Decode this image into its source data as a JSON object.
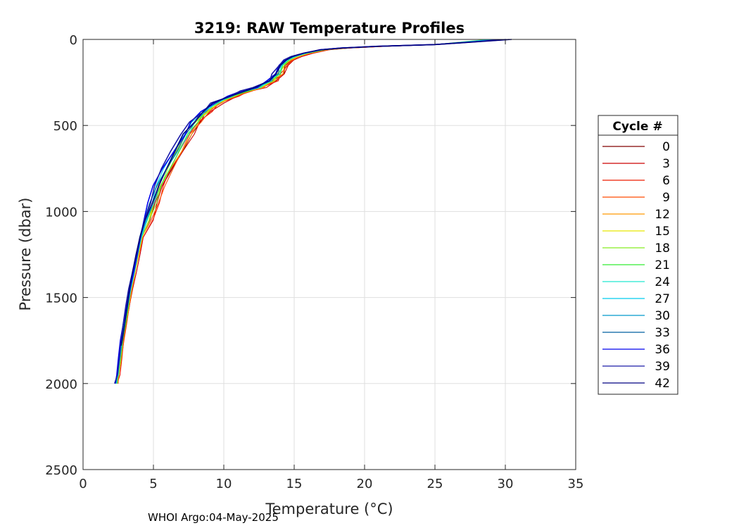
{
  "chart_data": {
    "type": "line",
    "title": "3219: RAW Temperature Profiles",
    "xlabel": "Temperature (",
    "xlabel_unit": "°C)",
    "ylabel": "Pressure (dbar)",
    "xlim": [
      0,
      35
    ],
    "ylim": [
      0,
      2500
    ],
    "y_reversed": true,
    "x_ticks": [
      0,
      5,
      10,
      15,
      20,
      25,
      30,
      35
    ],
    "y_ticks": [
      0,
      500,
      1000,
      1500,
      2000,
      2500
    ],
    "grid": true,
    "legend_title": "Cycle #",
    "legend_position": "right",
    "footer": "WHOI Argo:04-May-2025",
    "series": [
      {
        "name": "0",
        "color": "#800000",
        "dT": 0.3,
        "maxP": 2000,
        "surfT": 29.6
      },
      {
        "name": "3",
        "color": "#cc0000",
        "dT": 0.5,
        "maxP": 1780,
        "surfT": 29.8
      },
      {
        "name": "6",
        "color": "#ee1c00",
        "dT": 0.4,
        "maxP": 2000,
        "surfT": 29.2
      },
      {
        "name": "9",
        "color": "#ff4a00",
        "dT": 0.35,
        "maxP": 2000,
        "surfT": 29.5
      },
      {
        "name": "12",
        "color": "#ff9900",
        "dT": 0.25,
        "maxP": 2000,
        "surfT": 29.0
      },
      {
        "name": "15",
        "color": "#e6e600",
        "dT": 0.2,
        "maxP": 2000,
        "surfT": 29.4
      },
      {
        "name": "18",
        "color": "#88ee22",
        "dT": 0.15,
        "maxP": 2000,
        "surfT": 28.8
      },
      {
        "name": "21",
        "color": "#33ee33",
        "dT": 0.1,
        "maxP": 2000,
        "surfT": 29.1
      },
      {
        "name": "24",
        "color": "#22e6d0",
        "dT": 0.05,
        "maxP": 2000,
        "surfT": 28.9
      },
      {
        "name": "27",
        "color": "#00ccee",
        "dT": 0.0,
        "maxP": 2000,
        "surfT": 29.3
      },
      {
        "name": "30",
        "color": "#0099cc",
        "dT": -0.05,
        "maxP": 2000,
        "surfT": 29.7
      },
      {
        "name": "33",
        "color": "#005fa0",
        "dT": -0.1,
        "maxP": 1780,
        "surfT": 30.2
      },
      {
        "name": "36",
        "color": "#0000ee",
        "dT": -0.15,
        "maxP": 2000,
        "surfT": 30.0
      },
      {
        "name": "39",
        "color": "#1a1aa8",
        "dT": -0.2,
        "maxP": 2000,
        "surfT": 30.3
      },
      {
        "name": "42",
        "color": "#000080",
        "dT": -0.1,
        "maxP": 1780,
        "surfT": 30.5
      }
    ],
    "base_profile": [
      [
        0,
        30.0
      ],
      [
        20,
        28.0
      ],
      [
        30,
        25.0
      ],
      [
        40,
        21.0
      ],
      [
        50,
        18.5
      ],
      [
        60,
        17.0
      ],
      [
        80,
        15.8
      ],
      [
        100,
        15.0
      ],
      [
        120,
        14.5
      ],
      [
        150,
        14.1
      ],
      [
        200,
        13.8
      ],
      [
        240,
        13.3
      ],
      [
        280,
        12.4
      ],
      [
        300,
        11.5
      ],
      [
        330,
        10.5
      ],
      [
        370,
        9.4
      ],
      [
        420,
        8.6
      ],
      [
        480,
        7.9
      ],
      [
        550,
        7.3
      ],
      [
        650,
        6.6
      ],
      [
        750,
        5.9
      ],
      [
        850,
        5.3
      ],
      [
        950,
        4.9
      ],
      [
        1050,
        4.5
      ],
      [
        1150,
        4.1
      ],
      [
        1250,
        3.85
      ],
      [
        1350,
        3.6
      ],
      [
        1450,
        3.35
      ],
      [
        1550,
        3.15
      ],
      [
        1650,
        2.95
      ],
      [
        1750,
        2.75
      ],
      [
        1850,
        2.6
      ],
      [
        1950,
        2.45
      ],
      [
        2000,
        2.35
      ]
    ]
  }
}
